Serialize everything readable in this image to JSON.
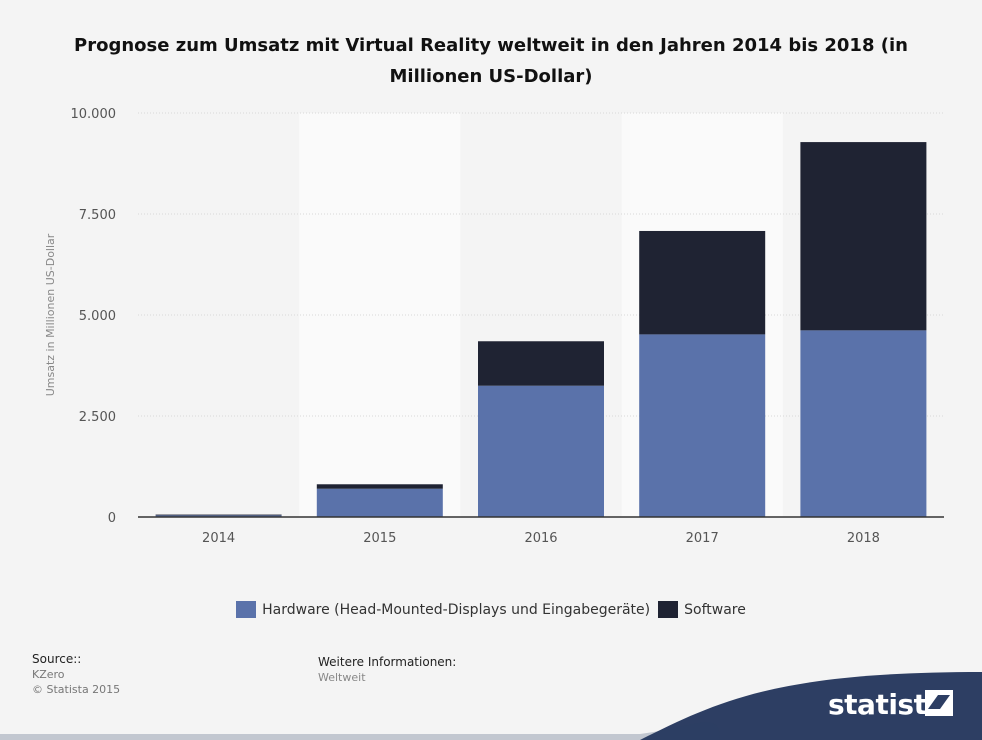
{
  "title": "Prognose zum Umsatz mit Virtual Reality weltweit in den Jahren 2014 bis 2018 (in Millionen US-Dollar)",
  "chart_data": {
    "type": "bar",
    "stacked": true,
    "categories": [
      "2014",
      "2015",
      "2016",
      "2017",
      "2018"
    ],
    "series": [
      {
        "name": "Hardware (Head-Mounted-Displays und Eingabegeräte)",
        "values": [
          40,
          700,
          3250,
          4520,
          4620
        ],
        "color": "#5a72aa"
      },
      {
        "name": "Software",
        "values": [
          20,
          110,
          1100,
          2560,
          4660
        ],
        "color": "#1f2333"
      }
    ],
    "ylabel": "Umsatz in Millionen US-Dollar",
    "xlabel": "",
    "ylim": [
      0,
      10000
    ],
    "yticks": [
      0,
      2500,
      5000,
      7500,
      10000
    ],
    "ytick_labels": [
      "0",
      "2.500",
      "5.000",
      "7.500",
      "10.000"
    ],
    "grid": true,
    "legend_position": "bottom-center"
  },
  "footer": {
    "source_heading": "Source::",
    "source_name": "KZero",
    "copyright": "© Statista 2015",
    "info_heading": "Weitere Informationen:",
    "info_value": "Weltweit"
  },
  "brand": {
    "name": "statista",
    "accent_color": "#2d3e63"
  }
}
